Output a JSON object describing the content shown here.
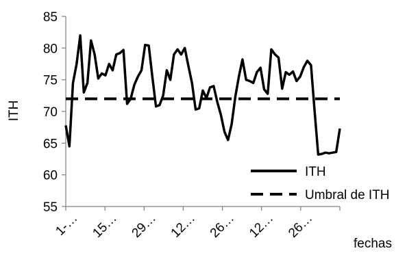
{
  "chart_data": {
    "type": "line",
    "title": "",
    "xlabel": "fechas",
    "ylabel": "ITH",
    "ylim": [
      55,
      85
    ],
    "yticks": [
      55,
      60,
      65,
      70,
      75,
      80,
      85
    ],
    "x_tick_labels": [
      "1-…",
      "15…",
      "29…",
      "12…",
      "26…",
      "12…",
      "26…"
    ],
    "grid": false,
    "legend": "bottom-right",
    "threshold": {
      "name": "Umbral de ITH",
      "value": 72
    },
    "series": [
      {
        "name": "ITH",
        "style": "solid",
        "color": "#000000",
        "values": [
          67.8,
          64.5,
          74.5,
          77.5,
          82.0,
          73.0,
          74.5,
          81.2,
          79.0,
          75.2,
          76.0,
          75.7,
          77.5,
          76.5,
          79.0,
          79.2,
          79.7,
          71.2,
          72.0,
          74.2,
          75.5,
          76.5,
          80.5,
          80.4,
          75.5,
          70.8,
          71.0,
          72.5,
          76.5,
          75.0,
          79.0,
          79.8,
          79.0,
          80.0,
          77.2,
          74.5,
          70.3,
          70.5,
          73.3,
          72.1,
          73.8,
          74.0,
          71.5,
          69.5,
          66.8,
          65.5,
          68.0,
          72.3,
          75.5,
          78.2,
          75.0,
          74.8,
          74.5,
          76.2,
          76.9,
          73.5,
          72.8,
          79.8,
          79.0,
          78.5,
          73.6,
          76.2,
          75.8,
          76.3,
          74.8,
          75.5,
          77.0,
          78.0,
          77.3,
          70.0,
          63.2,
          63.3,
          63.5,
          63.4,
          63.5,
          63.6,
          67.3
        ]
      }
    ]
  }
}
